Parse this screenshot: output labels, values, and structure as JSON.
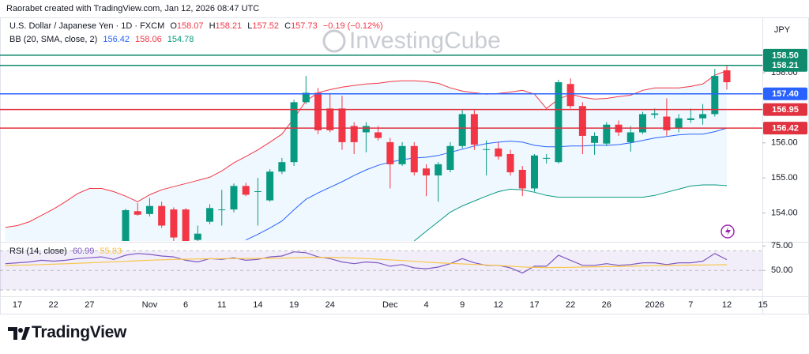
{
  "header": "Raorabet created with TradingView.com, Jan 12, 2026 08:47 UTC",
  "footer_brand": "TradingView",
  "chart_data": {
    "type": "candlestick",
    "title": "U.S. Dollar / Japanese Yen · 1D · FXCM",
    "ohlc_labels": [
      "O",
      "H",
      "L",
      "C"
    ],
    "change": "−0.19 (−0.12%)",
    "y_axis_label": "JPY",
    "watermark": "InvestingCube",
    "categories": [
      null,
      "17",
      null,
      null,
      "22",
      null,
      null,
      "27",
      null,
      null,
      null,
      null,
      "Nov",
      null,
      null,
      "6",
      null,
      null,
      "11",
      null,
      null,
      "14",
      null,
      null,
      "19",
      null,
      null,
      "24",
      null,
      null,
      null,
      null,
      "Dec",
      null,
      null,
      "4",
      null,
      null,
      "9",
      null,
      null,
      "12",
      null,
      null,
      "17",
      null,
      null,
      "22",
      null,
      null,
      "26",
      null,
      null,
      null,
      "2026",
      null,
      null,
      "7",
      null,
      null,
      "12",
      null,
      null,
      "15"
    ],
    "open": [
      null,
      null,
      null,
      null,
      null,
      null,
      null,
      null,
      null,
      null,
      153.05,
      154.05,
      153.97,
      154.2,
      154.1,
      154.1,
      153.23,
      153.75,
      154.08,
      154.1,
      154.77,
      154.6,
      154.36,
      155.18,
      155.45,
      157.16,
      157.43,
      156.98,
      156.98,
      156.48,
      156.3,
      156.3,
      156.02,
      155.39,
      155.91,
      155.27,
      155.07,
      155.23,
      155.91,
      156.82,
      155.8,
      155.84,
      155.68,
      155.23,
      154.7,
      155.55,
      155.45,
      157.68,
      157.05,
      156.0,
      155.98,
      156.52,
      156.02,
      156.3,
      156.8,
      156.75,
      156.43,
      156.65,
      156.7,
      156.82,
      158.07,
      null,
      null,
      null
    ],
    "high": [
      null,
      null,
      null,
      null,
      null,
      null,
      null,
      null,
      null,
      null,
      154.12,
      154.28,
      154.43,
      154.32,
      154.16,
      154.14,
      153.64,
      154.25,
      154.66,
      154.84,
      154.86,
      155.0,
      155.25,
      155.57,
      157.23,
      157.91,
      157.57,
      157.4,
      157.34,
      156.59,
      156.59,
      156.48,
      156.14,
      156.02,
      156.02,
      155.39,
      155.45,
      156.02,
      156.93,
      156.93,
      156.07,
      156.02,
      155.8,
      155.34,
      155.68,
      155.68,
      157.8,
      157.84,
      157.16,
      156.3,
      156.59,
      156.64,
      156.48,
      156.89,
      156.98,
      157.27,
      156.82,
      156.98,
      157.11,
      158.11,
      158.21,
      null,
      null,
      null
    ],
    "low": [
      null,
      null,
      null,
      null,
      null,
      null,
      null,
      null,
      null,
      null,
      152.9,
      153.92,
      153.9,
      153.57,
      153.18,
      152.95,
      153.18,
      153.68,
      153.64,
      154.02,
      154.48,
      153.64,
      154.32,
      155.11,
      155.34,
      157.11,
      156.25,
      156.3,
      155.8,
      155.68,
      155.73,
      156.07,
      154.7,
      155.34,
      155.07,
      154.48,
      154.32,
      155.16,
      155.84,
      155.8,
      155.07,
      155.52,
      155.07,
      154.48,
      154.61,
      155.41,
      155.41,
      156.98,
      155.68,
      155.66,
      155.91,
      156.2,
      155.75,
      156.25,
      156.7,
      156.2,
      156.3,
      156.57,
      156.52,
      156.75,
      157.52,
      null,
      null,
      null
    ],
    "close": [
      null,
      null,
      null,
      null,
      null,
      null,
      null,
      null,
      null,
      null,
      154.08,
      153.95,
      154.2,
      153.64,
      153.3,
      153.1,
      153.41,
      154.14,
      154.1,
      154.77,
      154.52,
      154.62,
      155.18,
      155.45,
      157.16,
      157.43,
      156.36,
      156.36,
      156.02,
      156.02,
      156.48,
      156.14,
      155.39,
      155.91,
      155.16,
      155.07,
      155.39,
      155.91,
      156.82,
      155.95,
      155.82,
      155.61,
      155.16,
      154.7,
      155.64,
      155.57,
      157.73,
      157.05,
      156.2,
      156.2,
      156.52,
      156.3,
      156.3,
      156.82,
      156.84,
      156.36,
      156.7,
      156.7,
      156.82,
      157.91,
      157.73,
      null,
      null,
      null
    ],
    "up_color": "#089981",
    "down_color": "#f23645",
    "ylim": [
      153.2,
      159.4
    ],
    "yticks": [
      {
        "value": 154,
        "label": "154.00"
      },
      {
        "value": 155,
        "label": "155.00"
      },
      {
        "value": 156,
        "label": "156.00"
      },
      {
        "value": 158,
        "label": "158.00"
      }
    ],
    "bollinger": {
      "label": "BB (20, SMA, close, 2)",
      "fill": "#2196f3",
      "series": [
        {
          "color": "#2962ff",
          "values": [
            null,
            null,
            null,
            null,
            null,
            null,
            null,
            null,
            null,
            null,
            null,
            null,
            null,
            null,
            null,
            null,
            null,
            null,
            null,
            null,
            153.23,
            153.39,
            153.57,
            153.77,
            154.09,
            154.39,
            154.57,
            154.73,
            154.89,
            155.07,
            155.23,
            155.36,
            155.45,
            155.52,
            155.57,
            155.59,
            155.64,
            155.73,
            155.82,
            155.91,
            155.98,
            156.02,
            156.05,
            156.02,
            155.93,
            155.89,
            155.89,
            155.91,
            155.91,
            155.93,
            155.93,
            155.95,
            156.0,
            156.07,
            156.14,
            156.18,
            156.23,
            156.25,
            156.25,
            156.32,
            156.42,
            null,
            null,
            null
          ]
        },
        {
          "color": "#f23645",
          "values": [
            153.59,
            153.64,
            153.75,
            153.93,
            154.11,
            154.32,
            154.55,
            154.7,
            154.7,
            154.61,
            154.48,
            154.32,
            154.52,
            154.66,
            154.75,
            154.84,
            154.93,
            155.02,
            155.2,
            155.43,
            155.61,
            155.8,
            156.02,
            156.25,
            156.7,
            157.2,
            157.43,
            157.52,
            157.59,
            157.64,
            157.68,
            157.7,
            157.75,
            157.77,
            157.77,
            157.75,
            157.7,
            157.57,
            157.48,
            157.43,
            157.39,
            157.41,
            157.45,
            157.5,
            157.39,
            156.98,
            157.25,
            157.39,
            157.3,
            157.25,
            157.27,
            157.32,
            157.36,
            157.5,
            157.57,
            157.57,
            157.57,
            157.61,
            157.68,
            157.93,
            158.06,
            null,
            null,
            null
          ]
        },
        {
          "color": "#089981",
          "values": [
            null,
            null,
            null,
            null,
            null,
            null,
            null,
            null,
            null,
            null,
            null,
            null,
            null,
            null,
            null,
            null,
            null,
            null,
            null,
            null,
            null,
            null,
            null,
            null,
            null,
            null,
            null,
            null,
            null,
            null,
            null,
            null,
            null,
            null,
            153.2,
            153.48,
            153.75,
            154.02,
            154.2,
            154.34,
            154.48,
            154.61,
            154.68,
            154.66,
            154.59,
            154.5,
            154.45,
            154.45,
            154.45,
            154.45,
            154.45,
            154.45,
            154.45,
            154.45,
            154.5,
            154.59,
            154.68,
            154.77,
            154.8,
            154.8,
            154.78,
            null,
            null,
            null
          ]
        }
      ]
    },
    "price_lines": [
      {
        "value": 158.5,
        "label": "158.50",
        "color": "#0f8a6c"
      },
      {
        "value": 158.21,
        "color": "#0f8a6c"
      },
      {
        "value": 157.4,
        "label": "157.40",
        "color": "#2962ff"
      },
      {
        "value": 156.95,
        "color": "#e0323f"
      },
      {
        "value": 156.42,
        "color": "#e0323f"
      }
    ],
    "rsi": {
      "label": "RSI (14, close)",
      "ylim": [
        26,
        77.6
      ],
      "yticks": [
        {
          "value": 75,
          "label": "75.00"
        },
        {
          "value": 50,
          "label": "50.00"
        }
      ],
      "levels": [
        70,
        50,
        30
      ],
      "band_color": "#7e57c2",
      "series": [
        {
          "color": "#7e57c2",
          "values": [
            56.9,
            57.76,
            58.62,
            60.34,
            59.48,
            60.34,
            62.07,
            62.93,
            63.79,
            61.21,
            65.52,
            67.24,
            66.38,
            64.66,
            63.79,
            60.34,
            58.62,
            62.07,
            61.21,
            62.93,
            60.34,
            61.21,
            63.79,
            64.66,
            68.97,
            68.1,
            63.79,
            62.07,
            58.62,
            56.9,
            58.62,
            57.76,
            54.31,
            56.03,
            52.59,
            51.72,
            53.45,
            56.9,
            62.07,
            57.76,
            55.17,
            55.17,
            52.59,
            47.41,
            54.31,
            54.31,
            65.52,
            60.34,
            55.17,
            55.17,
            56.9,
            55.17,
            56.03,
            57.76,
            57.76,
            56.03,
            57.76,
            57.76,
            59.48,
            67.24,
            60.99,
            null,
            null,
            null
          ]
        },
        {
          "color": "#f7c548",
          "values": [
            55.0,
            55.3,
            55.6,
            56.0,
            56.4,
            56.8,
            57.3,
            57.8,
            58.3,
            58.8,
            59.3,
            59.9,
            60.4,
            60.8,
            61.2,
            61.5,
            61.7,
            61.9,
            62.0,
            62.1,
            62.2,
            62.3,
            62.4,
            62.5,
            62.8,
            63.1,
            63.2,
            63.2,
            63.0,
            62.6,
            62.1,
            61.5,
            60.8,
            60.1,
            59.3,
            58.5,
            57.8,
            57.2,
            56.6,
            56.1,
            55.6,
            55.0,
            54.4,
            53.6,
            53.1,
            52.9,
            53.0,
            53.2,
            53.5,
            53.7,
            53.9,
            54.1,
            54.3,
            54.6,
            54.9,
            55.1,
            55.3,
            55.4,
            55.5,
            55.7,
            55.83,
            null,
            null,
            null
          ]
        }
      ]
    }
  }
}
